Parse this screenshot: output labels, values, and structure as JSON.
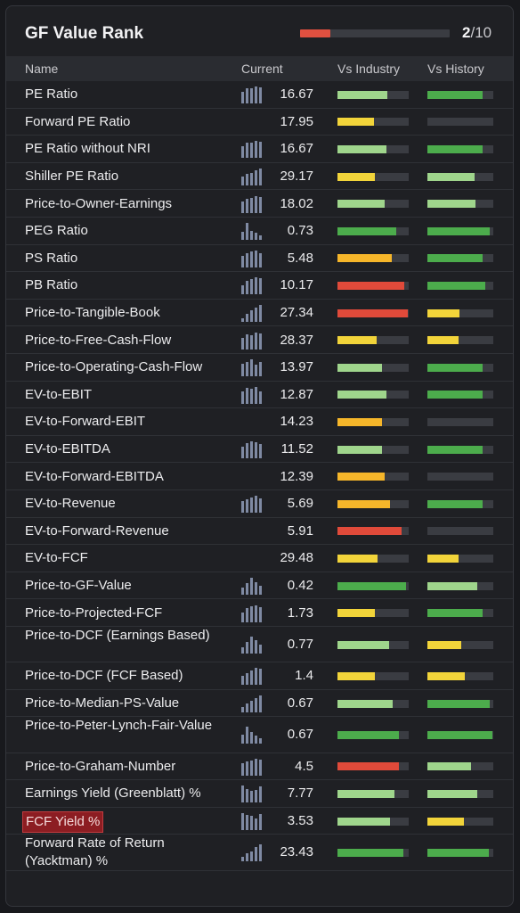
{
  "title": "GF Value Rank",
  "rank": {
    "value": "2",
    "suffix": "/10",
    "fill": 0.2,
    "color": "#e05040"
  },
  "columns": {
    "name": "Name",
    "current": "Current",
    "industry": "Vs Industry",
    "history": "Vs History"
  },
  "colors": {
    "dgreen": "#4cac4c",
    "lgreen": "#9fd58c",
    "yellow": "#f2d43a",
    "orange": "#f6b62a",
    "red": "#e04a3a"
  },
  "rows": [
    {
      "name": "PE Ratio",
      "value": "16.67",
      "spark": [
        0.7,
        0.9,
        0.9,
        1.0,
        0.95
      ],
      "ind": [
        "lgreen",
        0.7
      ],
      "his": [
        "dgreen",
        0.84
      ]
    },
    {
      "name": "Forward PE Ratio",
      "value": "17.95",
      "spark": null,
      "ind": [
        "yellow",
        0.51
      ],
      "his": null
    },
    {
      "name": "PE Ratio without NRI",
      "value": "16.67",
      "spark": [
        0.7,
        0.9,
        0.9,
        1.0,
        0.95
      ],
      "ind": [
        "lgreen",
        0.69
      ],
      "his": [
        "dgreen",
        0.84
      ]
    },
    {
      "name": "Shiller PE Ratio",
      "value": "29.17",
      "spark": [
        0.5,
        0.7,
        0.75,
        0.9,
        1.0
      ],
      "ind": [
        "yellow",
        0.53
      ],
      "his": [
        "lgreen",
        0.72
      ]
    },
    {
      "name": "Price-to-Owner-Earnings",
      "value": "18.02",
      "spark": [
        0.7,
        0.85,
        0.9,
        1.0,
        0.95
      ],
      "ind": [
        "lgreen",
        0.66
      ],
      "his": [
        "lgreen",
        0.73
      ]
    },
    {
      "name": "PEG Ratio",
      "value": "0.73",
      "spark": [
        0.45,
        1.0,
        0.55,
        0.4,
        0.25
      ],
      "ind": [
        "dgreen",
        0.83
      ],
      "his": [
        "dgreen",
        0.95
      ]
    },
    {
      "name": "PS Ratio",
      "value": "5.48",
      "spark": [
        0.7,
        0.85,
        0.95,
        1.0,
        0.85
      ],
      "ind": [
        "orange",
        0.76
      ],
      "his": [
        "dgreen",
        0.84
      ]
    },
    {
      "name": "PB Ratio",
      "value": "10.17",
      "spark": [
        0.55,
        0.8,
        0.9,
        1.0,
        0.95
      ],
      "ind": [
        "red",
        0.94
      ],
      "his": [
        "dgreen",
        0.88
      ]
    },
    {
      "name": "Price-to-Tangible-Book",
      "value": "27.34",
      "spark": [
        0.2,
        0.45,
        0.7,
        0.85,
        1.0
      ],
      "ind": [
        "red",
        0.99
      ],
      "his": [
        "yellow",
        0.48
      ]
    },
    {
      "name": "Price-to-Free-Cash-Flow",
      "value": "28.37",
      "spark": [
        0.7,
        0.9,
        0.85,
        1.0,
        0.95
      ],
      "ind": [
        "yellow",
        0.55
      ],
      "his": [
        "yellow",
        0.47
      ]
    },
    {
      "name": "Price-to-Operating-Cash-Flow",
      "value": "13.97",
      "spark": [
        0.75,
        0.85,
        1.0,
        0.7,
        0.85
      ],
      "ind": [
        "lgreen",
        0.62
      ],
      "his": [
        "dgreen",
        0.84
      ]
    },
    {
      "name": "EV-to-EBIT",
      "value": "12.87",
      "spark": [
        0.75,
        0.95,
        0.9,
        1.0,
        0.75
      ],
      "ind": [
        "lgreen",
        0.69
      ],
      "his": [
        "dgreen",
        0.84
      ]
    },
    {
      "name": "EV-to-Forward-EBIT",
      "value": "14.23",
      "spark": null,
      "ind": [
        "orange",
        0.63
      ],
      "his": null
    },
    {
      "name": "EV-to-EBITDA",
      "value": "11.52",
      "spark": [
        0.7,
        0.9,
        1.0,
        0.95,
        0.85
      ],
      "ind": [
        "lgreen",
        0.63
      ],
      "his": [
        "dgreen",
        0.84
      ]
    },
    {
      "name": "EV-to-Forward-EBITDA",
      "value": "12.39",
      "spark": null,
      "ind": [
        "orange",
        0.66
      ],
      "his": null
    },
    {
      "name": "EV-to-Revenue",
      "value": "5.69",
      "spark": [
        0.7,
        0.8,
        0.9,
        1.0,
        0.85
      ],
      "ind": [
        "orange",
        0.74
      ],
      "his": [
        "dgreen",
        0.84
      ]
    },
    {
      "name": "EV-to-Forward-Revenue",
      "value": "5.91",
      "spark": null,
      "ind": [
        "red",
        0.9
      ],
      "his": null
    },
    {
      "name": "EV-to-FCF",
      "value": "29.48",
      "spark": null,
      "ind": [
        "yellow",
        0.56
      ],
      "his": [
        "yellow",
        0.47
      ]
    },
    {
      "name": "Price-to-GF-Value",
      "value": "0.42",
      "spark": [
        0.4,
        0.7,
        1.0,
        0.75,
        0.5
      ],
      "ind": [
        "dgreen",
        0.96
      ],
      "his": [
        "lgreen",
        0.76
      ]
    },
    {
      "name": "Price-to-Projected-FCF",
      "value": "1.73",
      "spark": [
        0.6,
        0.85,
        0.95,
        1.0,
        0.9
      ],
      "ind": [
        "yellow",
        0.53
      ],
      "his": [
        "dgreen",
        0.84
      ]
    },
    {
      "name": "Price-to-DCF (Earnings Based)",
      "value": "0.77",
      "spark": [
        0.35,
        0.7,
        1.0,
        0.8,
        0.55
      ],
      "ind": [
        "lgreen",
        0.73
      ],
      "his": [
        "yellow",
        0.51
      ]
    },
    {
      "name": "Price-to-DCF (FCF Based)",
      "value": "1.4",
      "spark": [
        0.5,
        0.7,
        0.85,
        1.0,
        0.95
      ],
      "ind": [
        "yellow",
        0.53
      ],
      "his": [
        "yellow",
        0.57
      ]
    },
    {
      "name": "Price-to-Median-PS-Value",
      "value": "0.67",
      "spark": [
        0.3,
        0.5,
        0.7,
        0.85,
        1.0
      ],
      "ind": [
        "lgreen",
        0.77
      ],
      "his": [
        "dgreen",
        0.94
      ]
    },
    {
      "name": "Price-to-Peter-Lynch-Fair-Value",
      "value": "0.67",
      "spark": [
        0.5,
        1.0,
        0.7,
        0.45,
        0.3
      ],
      "ind": [
        "dgreen",
        0.86
      ],
      "his": [
        "dgreen",
        0.99
      ]
    },
    {
      "name": "Price-to-Graham-Number",
      "value": "4.5",
      "spark": [
        0.75,
        0.85,
        0.9,
        1.0,
        0.95
      ],
      "ind": [
        "red",
        0.86
      ],
      "his": [
        "lgreen",
        0.66
      ]
    },
    {
      "name": "Earnings Yield (Greenblatt) %",
      "value": "7.77",
      "spark": [
        1.0,
        0.8,
        0.7,
        0.75,
        0.95
      ],
      "ind": [
        "lgreen",
        0.8
      ],
      "his": [
        "lgreen",
        0.76
      ]
    },
    {
      "name": "FCF Yield %",
      "value": "3.53",
      "highlight": true,
      "spark": [
        1.0,
        0.9,
        0.85,
        0.7,
        0.95
      ],
      "ind": [
        "lgreen",
        0.74
      ],
      "his": [
        "yellow",
        0.56
      ]
    },
    {
      "name": "Forward Rate of Return (Yacktman) %",
      "value": "23.43",
      "spark": [
        0.25,
        0.45,
        0.6,
        0.85,
        1.0
      ],
      "ind": [
        "dgreen",
        0.93
      ],
      "his": [
        "dgreen",
        0.93
      ]
    }
  ]
}
